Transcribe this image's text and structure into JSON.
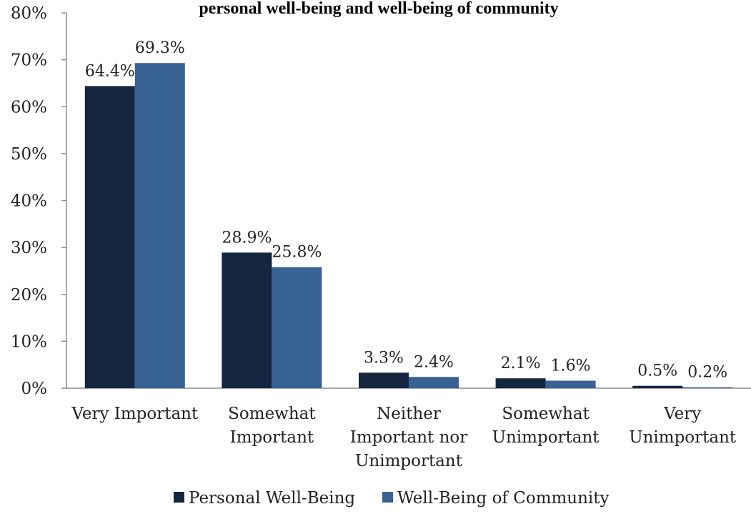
{
  "chart_data": {
    "type": "bar",
    "title": "personal well-being and well-being of  community",
    "categories": [
      [
        "Very Important"
      ],
      [
        "Somewhat",
        "Important"
      ],
      [
        "Neither",
        "Important nor",
        "Unimportant"
      ],
      [
        "Somewhat",
        "Unimportant"
      ],
      [
        "Very",
        "Unimportant"
      ]
    ],
    "series": [
      {
        "name": "Personal Well-Being",
        "color": "#14263f",
        "values": [
          64.4,
          28.9,
          3.3,
          2.1,
          0.5
        ],
        "labels": [
          "64.4%",
          "28.9%",
          "3.3%",
          "2.1%",
          "0.5%"
        ]
      },
      {
        "name": "Well-Being of Community",
        "color": "#386293",
        "values": [
          69.3,
          25.8,
          2.4,
          1.6,
          0.2
        ],
        "labels": [
          "69.3%",
          "25.8%",
          "2.4%",
          "1.6%",
          "0.2%"
        ]
      }
    ],
    "yticks": [
      "0%",
      "10%",
      "20%",
      "30%",
      "40%",
      "50%",
      "60%",
      "70%",
      "80%"
    ],
    "ylim": [
      0,
      80
    ],
    "grid": false,
    "legend_position": "bottom"
  }
}
